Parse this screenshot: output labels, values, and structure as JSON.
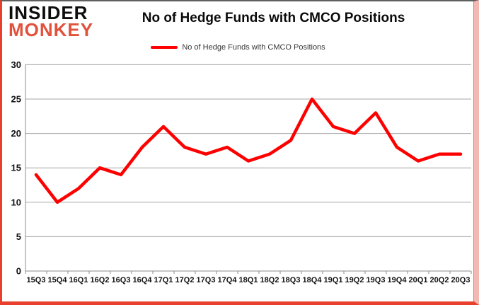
{
  "logo": {
    "line1": "INSIDER",
    "line2": "MONKEY"
  },
  "header": {
    "title": "No of Hedge Funds with CMCO Positions"
  },
  "legend": {
    "label": "No of Hedge Funds with CMCO Positions",
    "color": "#fe0000"
  },
  "chart_data": {
    "type": "line",
    "title": "No of Hedge Funds with CMCO Positions",
    "categories": [
      "15Q3",
      "15Q4",
      "16Q1",
      "16Q2",
      "16Q3",
      "16Q4",
      "17Q1",
      "17Q2",
      "17Q3",
      "17Q4",
      "18Q1",
      "18Q2",
      "18Q3",
      "18Q4",
      "19Q1",
      "19Q2",
      "19Q3",
      "19Q4",
      "20Q1",
      "20Q2",
      "20Q3"
    ],
    "series": [
      {
        "name": "No of Hedge Funds with CMCO Positions",
        "values": [
          14,
          10,
          12,
          15,
          14,
          18,
          21,
          18,
          17,
          18,
          16,
          17,
          19,
          25,
          21,
          20,
          23,
          18,
          16,
          17,
          17
        ],
        "color": "#fe0000"
      }
    ],
    "xlabel": "",
    "ylabel": "",
    "ylim": [
      0,
      30
    ],
    "yticks": [
      0,
      5,
      10,
      15,
      20,
      25,
      30
    ],
    "grid": true,
    "legend_position": "top"
  },
  "colors": {
    "gridline": "#a6a6a6",
    "axis": "#8c8c8c",
    "tick_text": "#111111",
    "frame_red": "#e8402c",
    "frame_pink": "#f4b8b2",
    "frame_top": "#5f5f5f",
    "logo_red": "#e2513c",
    "line": "#fe0000"
  }
}
